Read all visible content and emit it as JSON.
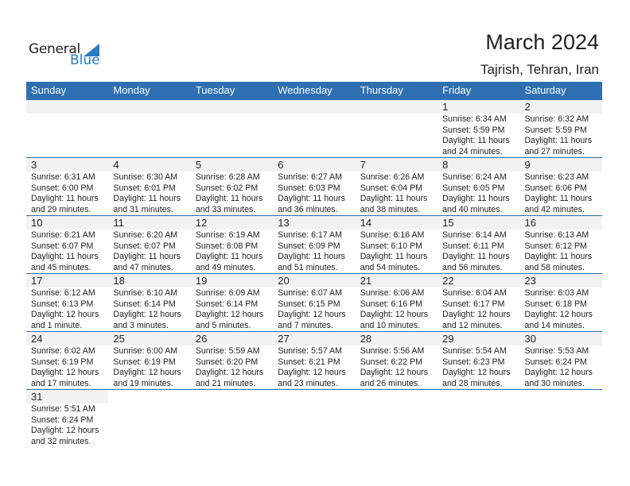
{
  "logo": {
    "line1": "General",
    "line2": "Blue"
  },
  "header": {
    "title": "March 2024",
    "location": "Tajrish, Tehran, Iran"
  },
  "colors": {
    "accent": "#2e6fb2",
    "date_band": "#f2f2f2"
  },
  "weekdays": [
    "Sunday",
    "Monday",
    "Tuesday",
    "Wednesday",
    "Thursday",
    "Friday",
    "Saturday"
  ],
  "weeks": [
    [
      null,
      null,
      null,
      null,
      null,
      {
        "day": "1",
        "sunrise": "Sunrise: 6:34 AM",
        "sunset": "Sunset: 5:59 PM",
        "daylight1": "Daylight: 11 hours",
        "daylight2": "and 24 minutes."
      },
      {
        "day": "2",
        "sunrise": "Sunrise: 6:32 AM",
        "sunset": "Sunset: 5:59 PM",
        "daylight1": "Daylight: 11 hours",
        "daylight2": "and 27 minutes."
      }
    ],
    [
      {
        "day": "3",
        "sunrise": "Sunrise: 6:31 AM",
        "sunset": "Sunset: 6:00 PM",
        "daylight1": "Daylight: 11 hours",
        "daylight2": "and 29 minutes."
      },
      {
        "day": "4",
        "sunrise": "Sunrise: 6:30 AM",
        "sunset": "Sunset: 6:01 PM",
        "daylight1": "Daylight: 11 hours",
        "daylight2": "and 31 minutes."
      },
      {
        "day": "5",
        "sunrise": "Sunrise: 6:28 AM",
        "sunset": "Sunset: 6:02 PM",
        "daylight1": "Daylight: 11 hours",
        "daylight2": "and 33 minutes."
      },
      {
        "day": "6",
        "sunrise": "Sunrise: 6:27 AM",
        "sunset": "Sunset: 6:03 PM",
        "daylight1": "Daylight: 11 hours",
        "daylight2": "and 36 minutes."
      },
      {
        "day": "7",
        "sunrise": "Sunrise: 6:26 AM",
        "sunset": "Sunset: 6:04 PM",
        "daylight1": "Daylight: 11 hours",
        "daylight2": "and 38 minutes."
      },
      {
        "day": "8",
        "sunrise": "Sunrise: 6:24 AM",
        "sunset": "Sunset: 6:05 PM",
        "daylight1": "Daylight: 11 hours",
        "daylight2": "and 40 minutes."
      },
      {
        "day": "9",
        "sunrise": "Sunrise: 6:23 AM",
        "sunset": "Sunset: 6:06 PM",
        "daylight1": "Daylight: 11 hours",
        "daylight2": "and 42 minutes."
      }
    ],
    [
      {
        "day": "10",
        "sunrise": "Sunrise: 6:21 AM",
        "sunset": "Sunset: 6:07 PM",
        "daylight1": "Daylight: 11 hours",
        "daylight2": "and 45 minutes."
      },
      {
        "day": "11",
        "sunrise": "Sunrise: 6:20 AM",
        "sunset": "Sunset: 6:07 PM",
        "daylight1": "Daylight: 11 hours",
        "daylight2": "and 47 minutes."
      },
      {
        "day": "12",
        "sunrise": "Sunrise: 6:19 AM",
        "sunset": "Sunset: 6:08 PM",
        "daylight1": "Daylight: 11 hours",
        "daylight2": "and 49 minutes."
      },
      {
        "day": "13",
        "sunrise": "Sunrise: 6:17 AM",
        "sunset": "Sunset: 6:09 PM",
        "daylight1": "Daylight: 11 hours",
        "daylight2": "and 51 minutes."
      },
      {
        "day": "14",
        "sunrise": "Sunrise: 6:16 AM",
        "sunset": "Sunset: 6:10 PM",
        "daylight1": "Daylight: 11 hours",
        "daylight2": "and 54 minutes."
      },
      {
        "day": "15",
        "sunrise": "Sunrise: 6:14 AM",
        "sunset": "Sunset: 6:11 PM",
        "daylight1": "Daylight: 11 hours",
        "daylight2": "and 56 minutes."
      },
      {
        "day": "16",
        "sunrise": "Sunrise: 6:13 AM",
        "sunset": "Sunset: 6:12 PM",
        "daylight1": "Daylight: 11 hours",
        "daylight2": "and 58 minutes."
      }
    ],
    [
      {
        "day": "17",
        "sunrise": "Sunrise: 6:12 AM",
        "sunset": "Sunset: 6:13 PM",
        "daylight1": "Daylight: 12 hours",
        "daylight2": "and 1 minute."
      },
      {
        "day": "18",
        "sunrise": "Sunrise: 6:10 AM",
        "sunset": "Sunset: 6:14 PM",
        "daylight1": "Daylight: 12 hours",
        "daylight2": "and 3 minutes."
      },
      {
        "day": "19",
        "sunrise": "Sunrise: 6:09 AM",
        "sunset": "Sunset: 6:14 PM",
        "daylight1": "Daylight: 12 hours",
        "daylight2": "and 5 minutes."
      },
      {
        "day": "20",
        "sunrise": "Sunrise: 6:07 AM",
        "sunset": "Sunset: 6:15 PM",
        "daylight1": "Daylight: 12 hours",
        "daylight2": "and 7 minutes."
      },
      {
        "day": "21",
        "sunrise": "Sunrise: 6:06 AM",
        "sunset": "Sunset: 6:16 PM",
        "daylight1": "Daylight: 12 hours",
        "daylight2": "and 10 minutes."
      },
      {
        "day": "22",
        "sunrise": "Sunrise: 6:04 AM",
        "sunset": "Sunset: 6:17 PM",
        "daylight1": "Daylight: 12 hours",
        "daylight2": "and 12 minutes."
      },
      {
        "day": "23",
        "sunrise": "Sunrise: 6:03 AM",
        "sunset": "Sunset: 6:18 PM",
        "daylight1": "Daylight: 12 hours",
        "daylight2": "and 14 minutes."
      }
    ],
    [
      {
        "day": "24",
        "sunrise": "Sunrise: 6:02 AM",
        "sunset": "Sunset: 6:19 PM",
        "daylight1": "Daylight: 12 hours",
        "daylight2": "and 17 minutes."
      },
      {
        "day": "25",
        "sunrise": "Sunrise: 6:00 AM",
        "sunset": "Sunset: 6:19 PM",
        "daylight1": "Daylight: 12 hours",
        "daylight2": "and 19 minutes."
      },
      {
        "day": "26",
        "sunrise": "Sunrise: 5:59 AM",
        "sunset": "Sunset: 6:20 PM",
        "daylight1": "Daylight: 12 hours",
        "daylight2": "and 21 minutes."
      },
      {
        "day": "27",
        "sunrise": "Sunrise: 5:57 AM",
        "sunset": "Sunset: 6:21 PM",
        "daylight1": "Daylight: 12 hours",
        "daylight2": "and 23 minutes."
      },
      {
        "day": "28",
        "sunrise": "Sunrise: 5:56 AM",
        "sunset": "Sunset: 6:22 PM",
        "daylight1": "Daylight: 12 hours",
        "daylight2": "and 26 minutes."
      },
      {
        "day": "29",
        "sunrise": "Sunrise: 5:54 AM",
        "sunset": "Sunset: 6:23 PM",
        "daylight1": "Daylight: 12 hours",
        "daylight2": "and 28 minutes."
      },
      {
        "day": "30",
        "sunrise": "Sunrise: 5:53 AM",
        "sunset": "Sunset: 6:24 PM",
        "daylight1": "Daylight: 12 hours",
        "daylight2": "and 30 minutes."
      }
    ],
    [
      {
        "day": "31",
        "sunrise": "Sunrise: 5:51 AM",
        "sunset": "Sunset: 6:24 PM",
        "daylight1": "Daylight: 12 hours",
        "daylight2": "and 32 minutes."
      }
    ]
  ]
}
